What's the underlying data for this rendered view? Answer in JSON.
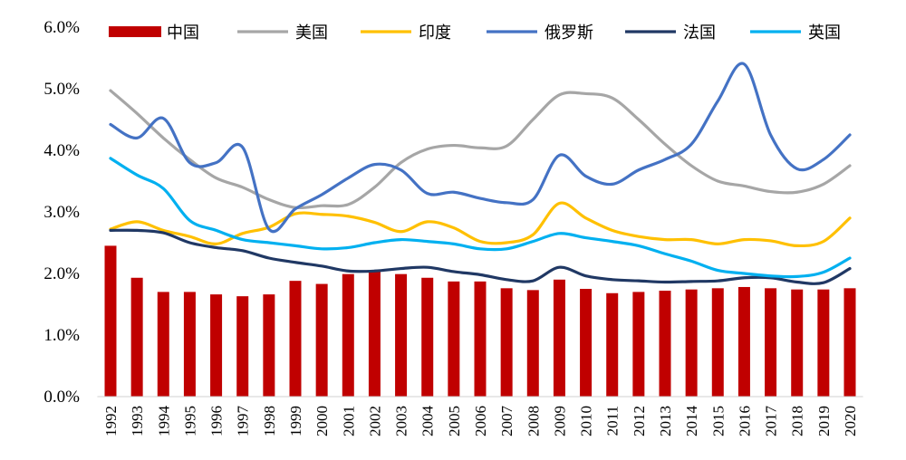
{
  "chart_data": {
    "type": "bar+line",
    "title": "",
    "xlabel": "",
    "ylabel": "",
    "ylim": [
      0,
      6
    ],
    "y_ticks": [
      "0.0%",
      "1.0%",
      "2.0%",
      "3.0%",
      "4.0%",
      "5.0%",
      "6.0%"
    ],
    "grid": false,
    "legend_position": "top",
    "categories": [
      "1992",
      "1993",
      "1994",
      "1995",
      "1996",
      "1997",
      "1998",
      "1999",
      "2000",
      "2001",
      "2002",
      "2003",
      "2004",
      "2005",
      "2006",
      "2007",
      "2008",
      "2009",
      "2010",
      "2011",
      "2012",
      "2013",
      "2014",
      "2015",
      "2016",
      "2017",
      "2018",
      "2019",
      "2020"
    ],
    "series": [
      {
        "name": "中国",
        "kind": "bar",
        "color": "#c00000",
        "values": [
          2.45,
          1.93,
          1.7,
          1.7,
          1.66,
          1.63,
          1.66,
          1.88,
          1.83,
          1.99,
          2.04,
          1.99,
          1.93,
          1.87,
          1.87,
          1.76,
          1.73,
          1.9,
          1.75,
          1.68,
          1.7,
          1.72,
          1.74,
          1.76,
          1.78,
          1.76,
          1.74,
          1.74,
          1.76
        ]
      },
      {
        "name": "美国",
        "kind": "line",
        "color": "#a6a6a6",
        "values": [
          4.97,
          4.6,
          4.2,
          3.85,
          3.55,
          3.4,
          3.2,
          3.07,
          3.1,
          3.12,
          3.4,
          3.8,
          4.02,
          4.08,
          4.04,
          4.07,
          4.5,
          4.9,
          4.92,
          4.85,
          4.5,
          4.1,
          3.75,
          3.5,
          3.42,
          3.33,
          3.32,
          3.45,
          3.75
        ]
      },
      {
        "name": "印度",
        "kind": "line",
        "color": "#ffc000",
        "values": [
          2.72,
          2.84,
          2.7,
          2.6,
          2.48,
          2.65,
          2.75,
          2.97,
          2.96,
          2.93,
          2.83,
          2.68,
          2.84,
          2.74,
          2.52,
          2.5,
          2.63,
          3.14,
          2.9,
          2.7,
          2.6,
          2.55,
          2.55,
          2.48,
          2.55,
          2.53,
          2.45,
          2.52,
          2.9
        ]
      },
      {
        "name": "俄罗斯",
        "kind": "line",
        "color": "#4472c4",
        "values": [
          4.42,
          4.2,
          4.52,
          3.8,
          3.8,
          4.05,
          2.72,
          3.05,
          3.28,
          3.55,
          3.77,
          3.68,
          3.3,
          3.32,
          3.22,
          3.15,
          3.2,
          3.92,
          3.58,
          3.45,
          3.68,
          3.85,
          4.1,
          4.8,
          5.4,
          4.25,
          3.7,
          3.85,
          4.25
        ]
      },
      {
        "name": "法国",
        "kind": "line",
        "color": "#203864",
        "values": [
          2.7,
          2.7,
          2.66,
          2.5,
          2.42,
          2.37,
          2.25,
          2.18,
          2.12,
          2.04,
          2.04,
          2.08,
          2.1,
          2.03,
          1.98,
          1.9,
          1.88,
          2.1,
          1.96,
          1.9,
          1.88,
          1.86,
          1.87,
          1.88,
          1.93,
          1.93,
          1.86,
          1.85,
          2.08
        ]
      },
      {
        "name": "英国",
        "kind": "line",
        "color": "#00b0f0",
        "values": [
          3.87,
          3.6,
          3.38,
          2.86,
          2.7,
          2.55,
          2.5,
          2.45,
          2.4,
          2.42,
          2.5,
          2.55,
          2.52,
          2.48,
          2.4,
          2.4,
          2.52,
          2.65,
          2.58,
          2.52,
          2.45,
          2.32,
          2.2,
          2.05,
          2.0,
          1.96,
          1.95,
          2.02,
          2.25
        ]
      }
    ]
  }
}
